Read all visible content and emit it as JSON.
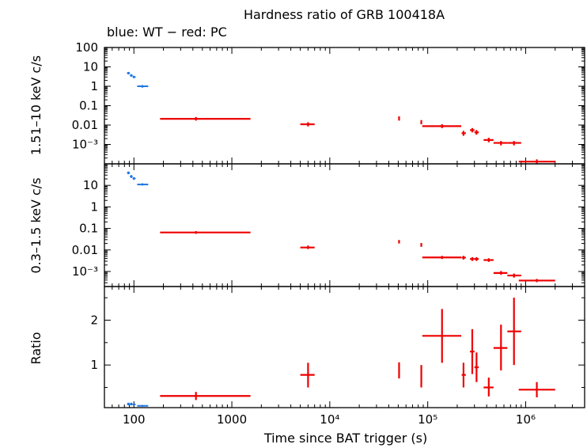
{
  "chart_data": {
    "type": "scatter",
    "title": "Hardness ratio of GRB 100418A",
    "subtitle": "blue: WT − red: PC",
    "xlabel": "Time since BAT trigger (s)",
    "xscale": "log",
    "xlim": [
      50,
      4000000
    ],
    "x_ticks": [
      {
        "v": 100,
        "label": "100"
      },
      {
        "v": 1000,
        "label": "1000"
      },
      {
        "v": 10000,
        "label": "10⁴"
      },
      {
        "v": 100000,
        "label": "10⁵"
      },
      {
        "v": 1000000,
        "label": "10⁶"
      }
    ],
    "colors": {
      "WT": "#1f78e0",
      "PC": "#ee0000"
    },
    "panels": [
      {
        "name": "hard",
        "ylabel": "1.51–10 keV c/s",
        "yscale": "log",
        "ylim": [
          0.0001,
          100
        ],
        "y_ticks": [
          {
            "v": 100,
            "label": "100"
          },
          {
            "v": 10,
            "label": "10"
          },
          {
            "v": 1,
            "label": "1"
          },
          {
            "v": 0.1,
            "label": "0.1"
          },
          {
            "v": 0.01,
            "label": "0.01"
          },
          {
            "v": 0.001,
            "label": "10⁻³"
          }
        ],
        "series": [
          {
            "name": "WT",
            "points": [
              {
                "x": 88,
                "x0": 85,
                "x1": 91,
                "y": 4.8,
                "y0": 4.1,
                "y1": 5.5
              },
              {
                "x": 94,
                "x0": 91,
                "x1": 97,
                "y": 3.6,
                "y0": 3.1,
                "y1": 4.2
              },
              {
                "x": 100,
                "x0": 97,
                "x1": 104,
                "y": 3.0,
                "y0": 2.6,
                "y1": 3.5
              },
              {
                "x": 122,
                "x0": 108,
                "x1": 140,
                "y": 1.0,
                "y0": 0.85,
                "y1": 1.15
              }
            ]
          },
          {
            "name": "PC",
            "points": [
              {
                "x": 430,
                "x0": 185,
                "x1": 1550,
                "y": 0.021,
                "y0": 0.017,
                "y1": 0.026
              },
              {
                "x": 6000,
                "x0": 5000,
                "x1": 7000,
                "y": 0.011,
                "y0": 0.0085,
                "y1": 0.014
              },
              {
                "x": 51000,
                "x0": 50000,
                "x1": 52000,
                "y": 0.022,
                "y0": 0.017,
                "y1": 0.028
              },
              {
                "x": 86000,
                "x0": 85000,
                "x1": 87000,
                "y": 0.014,
                "y0": 0.011,
                "y1": 0.018
              },
              {
                "x": 140000,
                "x0": 88000,
                "x1": 220000,
                "y": 0.0088,
                "y0": 0.007,
                "y1": 0.011
              },
              {
                "x": 232000,
                "x0": 222000,
                "x1": 245000,
                "y": 0.0038,
                "y0": 0.0028,
                "y1": 0.005
              },
              {
                "x": 285000,
                "x0": 270000,
                "x1": 300000,
                "y": 0.0055,
                "y0": 0.0042,
                "y1": 0.007
              },
              {
                "x": 315000,
                "x0": 300000,
                "x1": 332000,
                "y": 0.0042,
                "y0": 0.0032,
                "y1": 0.0055
              },
              {
                "x": 420000,
                "x0": 372000,
                "x1": 470000,
                "y": 0.0017,
                "y0": 0.0013,
                "y1": 0.0022
              },
              {
                "x": 560000,
                "x0": 470000,
                "x1": 650000,
                "y": 0.0012,
                "y0": 0.0009,
                "y1": 0.0015
              },
              {
                "x": 760000,
                "x0": 650000,
                "x1": 900000,
                "y": 0.0012,
                "y0": 0.0009,
                "y1": 0.0015
              },
              {
                "x": 1300000,
                "x0": 850000,
                "x1": 2000000,
                "y": 0.00013,
                "y0": 0.0001,
                "y1": 0.00017
              }
            ]
          }
        ]
      },
      {
        "name": "soft",
        "ylabel": "0.3–1.5 keV c/s",
        "yscale": "log",
        "ylim": [
          0.0002,
          100
        ],
        "y_ticks": [
          {
            "v": 10,
            "label": "10"
          },
          {
            "v": 1,
            "label": "1"
          },
          {
            "v": 0.1,
            "label": "0.1"
          },
          {
            "v": 0.01,
            "label": "0.01"
          },
          {
            "v": 0.001,
            "label": "10⁻³"
          }
        ],
        "series": [
          {
            "name": "WT",
            "points": [
              {
                "x": 88,
                "x0": 85,
                "x1": 91,
                "y": 38,
                "y0": 33,
                "y1": 44
              },
              {
                "x": 94,
                "x0": 91,
                "x1": 97,
                "y": 26,
                "y0": 22,
                "y1": 30
              },
              {
                "x": 100,
                "x0": 97,
                "x1": 104,
                "y": 21,
                "y0": 18,
                "y1": 24
              },
              {
                "x": 122,
                "x0": 108,
                "x1": 140,
                "y": 11,
                "y0": 9.8,
                "y1": 12.5
              }
            ]
          },
          {
            "name": "PC",
            "points": [
              {
                "x": 430,
                "x0": 185,
                "x1": 1550,
                "y": 0.065,
                "y0": 0.056,
                "y1": 0.075
              },
              {
                "x": 6000,
                "x0": 5000,
                "x1": 7000,
                "y": 0.013,
                "y0": 0.011,
                "y1": 0.016
              },
              {
                "x": 51000,
                "x0": 50000,
                "x1": 52000,
                "y": 0.024,
                "y0": 0.02,
                "y1": 0.029
              },
              {
                "x": 86000,
                "x0": 85000,
                "x1": 87000,
                "y": 0.017,
                "y0": 0.014,
                "y1": 0.021
              },
              {
                "x": 140000,
                "x0": 88000,
                "x1": 220000,
                "y": 0.0045,
                "y0": 0.0038,
                "y1": 0.0053
              },
              {
                "x": 232000,
                "x0": 222000,
                "x1": 245000,
                "y": 0.0044,
                "y0": 0.0036,
                "y1": 0.0053
              },
              {
                "x": 285000,
                "x0": 270000,
                "x1": 300000,
                "y": 0.0038,
                "y0": 0.0031,
                "y1": 0.0046
              },
              {
                "x": 315000,
                "x0": 300000,
                "x1": 332000,
                "y": 0.0038,
                "y0": 0.0031,
                "y1": 0.0046
              },
              {
                "x": 420000,
                "x0": 372000,
                "x1": 470000,
                "y": 0.0034,
                "y0": 0.0028,
                "y1": 0.0041
              },
              {
                "x": 560000,
                "x0": 470000,
                "x1": 650000,
                "y": 0.00085,
                "y0": 0.0007,
                "y1": 0.00105
              },
              {
                "x": 760000,
                "x0": 650000,
                "x1": 900000,
                "y": 0.00065,
                "y0": 0.00052,
                "y1": 0.0008
              },
              {
                "x": 1300000,
                "x0": 850000,
                "x1": 2000000,
                "y": 0.00038,
                "y0": 0.00032,
                "y1": 0.00045
              }
            ]
          }
        ]
      },
      {
        "name": "ratio",
        "ylabel": "Ratio",
        "yscale": "linear",
        "ylim": [
          0.05,
          2.75
        ],
        "y_ticks": [
          {
            "v": 1,
            "label": "1"
          },
          {
            "v": 2,
            "label": "2"
          }
        ],
        "series": [
          {
            "name": "WT",
            "points": [
              {
                "x": 88,
                "x0": 85,
                "x1": 91,
                "y": 0.13,
                "y0": 0.1,
                "y1": 0.16
              },
              {
                "x": 94,
                "x0": 91,
                "x1": 97,
                "y": 0.13,
                "y0": 0.1,
                "y1": 0.16
              },
              {
                "x": 100,
                "x0": 97,
                "x1": 104,
                "y": 0.12,
                "y0": 0.1,
                "y1": 0.14
              },
              {
                "x": 122,
                "x0": 108,
                "x1": 140,
                "y": 0.09,
                "y0": 0.07,
                "y1": 0.11
              }
            ]
          },
          {
            "name": "PC",
            "points": [
              {
                "x": 430,
                "x0": 185,
                "x1": 1550,
                "y": 0.31,
                "y0": 0.22,
                "y1": 0.4
              },
              {
                "x": 6000,
                "x0": 5000,
                "x1": 7000,
                "y": 0.78,
                "y0": 0.5,
                "y1": 1.05
              },
              {
                "x": 51000,
                "x0": 50000,
                "x1": 52000,
                "y": 0.88,
                "y0": 0.7,
                "y1": 1.06
              },
              {
                "x": 86000,
                "x0": 85000,
                "x1": 87000,
                "y": 0.74,
                "y0": 0.5,
                "y1": 1.0
              },
              {
                "x": 140000,
                "x0": 88000,
                "x1": 220000,
                "y": 1.65,
                "y0": 1.05,
                "y1": 2.25
              },
              {
                "x": 232000,
                "x0": 222000,
                "x1": 245000,
                "y": 0.78,
                "y0": 0.5,
                "y1": 1.05
              },
              {
                "x": 285000,
                "x0": 270000,
                "x1": 300000,
                "y": 1.3,
                "y0": 0.8,
                "y1": 1.8
              },
              {
                "x": 315000,
                "x0": 300000,
                "x1": 332000,
                "y": 0.95,
                "y0": 0.62,
                "y1": 1.28
              },
              {
                "x": 420000,
                "x0": 372000,
                "x1": 470000,
                "y": 0.5,
                "y0": 0.3,
                "y1": 0.72
              },
              {
                "x": 560000,
                "x0": 470000,
                "x1": 650000,
                "y": 1.38,
                "y0": 0.88,
                "y1": 1.9
              },
              {
                "x": 760000,
                "x0": 650000,
                "x1": 900000,
                "y": 1.75,
                "y0": 1.0,
                "y1": 2.5
              },
              {
                "x": 1300000,
                "x0": 850000,
                "x1": 2000000,
                "y": 0.45,
                "y0": 0.28,
                "y1": 0.62
              }
            ]
          }
        ]
      }
    ]
  }
}
